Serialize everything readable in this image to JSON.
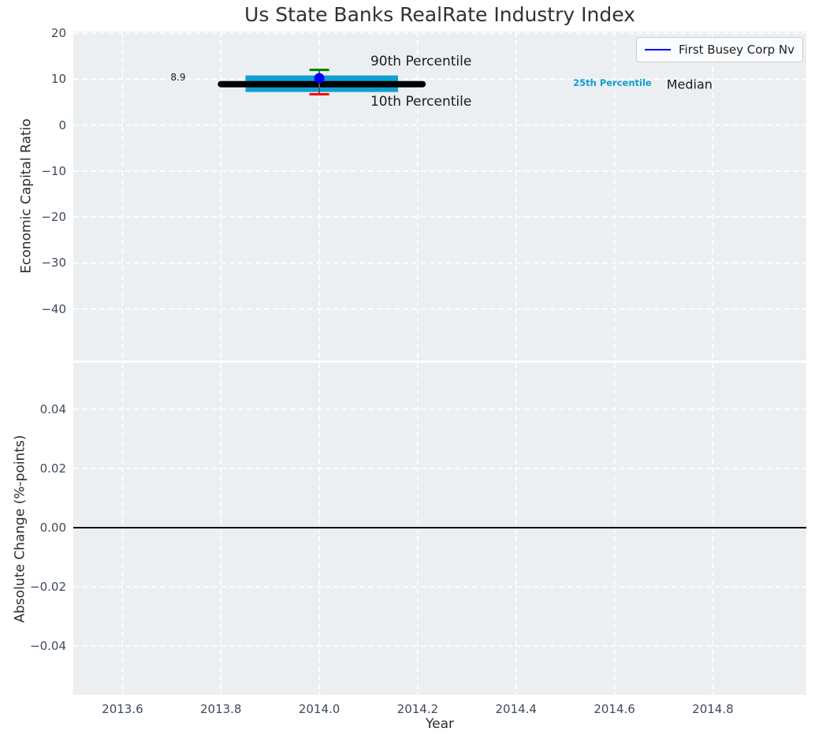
{
  "figure_title": "Us State Banks RealRate Industry Index",
  "chart_data": [
    {
      "type": "line",
      "title": "Us State Banks RealRate Industry Index",
      "ylabel": "Economic Capital Ratio",
      "xlabel": "",
      "xlim": [
        2013.5,
        2014.99
      ],
      "ylim": [
        -51.2,
        20.35
      ],
      "background": "#eceff1",
      "grid": {
        "on": true,
        "color": "#ffffff",
        "style": "dashed"
      },
      "xticks": [
        {
          "v": 2013.6,
          "t": "2013.6"
        },
        {
          "v": 2013.8,
          "t": "2013.8"
        },
        {
          "v": 2014.0,
          "t": "2014.0"
        },
        {
          "v": 2014.2,
          "t": "2014.2"
        },
        {
          "v": 2014.4,
          "t": "2014.4"
        },
        {
          "v": 2014.6,
          "t": "2014.6"
        },
        {
          "v": 2014.8,
          "t": "2014.8"
        }
      ],
      "yticks": [
        {
          "v": 20,
          "t": "20"
        },
        {
          "v": 10,
          "t": "10"
        },
        {
          "v": 0,
          "t": "0"
        },
        {
          "v": -10,
          "t": "−10"
        },
        {
          "v": -20,
          "t": "−20"
        },
        {
          "v": -30,
          "t": "−30"
        },
        {
          "v": -40,
          "t": "−40"
        }
      ],
      "legend": {
        "loc": "upper right",
        "entries": [
          {
            "label": "First Busey Corp Nv",
            "color": "#0000ff"
          }
        ]
      },
      "marks": [
        {
          "kind": "band",
          "name": "percentile-band",
          "series": "25th–75th Percentile band",
          "color": "#109fd4",
          "x": [
            2013.85,
            2014.16
          ],
          "y": [
            7.2,
            10.8
          ]
        },
        {
          "kind": "line",
          "name": "median-line",
          "series": "Median",
          "value": 8.9,
          "x": [
            2013.8,
            2014.21
          ],
          "color": "#000000",
          "width": 8,
          "cap": "round"
        },
        {
          "kind": "vline",
          "name": "percentile-whisker",
          "series": "10th–90th Percentile whisker",
          "x": 2014.0,
          "y": [
            6.7,
            12.0
          ],
          "color": "#555555",
          "width": 1.8
        },
        {
          "kind": "line",
          "name": "p90-cap",
          "series": "90th Percentile",
          "value": 12.0,
          "x": [
            2013.98,
            2014.02
          ],
          "color": "#008000",
          "width": 3,
          "cap": "butt"
        },
        {
          "kind": "line",
          "name": "p10-cap",
          "series": "10th Percentile",
          "value": 6.7,
          "x": [
            2013.98,
            2014.02
          ],
          "color": "#ff0000",
          "width": 3,
          "cap": "butt"
        },
        {
          "kind": "point",
          "name": "company-point",
          "series": "First Busey Corp Nv",
          "x": 2014.0,
          "value": 10.2,
          "color": "#0000ff",
          "radius": 6.5
        }
      ],
      "annotations": [
        {
          "name": "median-value",
          "text": "8.9",
          "x": 2013.713,
          "y": 10.44,
          "anchor": "middle",
          "size": 12,
          "color": "#1a1a1a"
        },
        {
          "name": "p90-label",
          "text": "90th Percentile",
          "x": 2014.104,
          "y": 13.86,
          "anchor": "start",
          "size": 17,
          "color": "#1a1a1a"
        },
        {
          "name": "p10-label",
          "text": "10th Percentile",
          "x": 2014.104,
          "y": 5.14,
          "anchor": "start",
          "size": 17,
          "color": "#1a1a1a"
        },
        {
          "name": "p25-label",
          "text": "25th Percentile",
          "x": 2014.516,
          "y": 8.97,
          "anchor": "start",
          "size": 11.5,
          "color": "#109fd4",
          "weight": "bold"
        },
        {
          "name": "median-label",
          "text": "Median",
          "x": 2014.706,
          "y": 8.9,
          "anchor": "start",
          "size": 16,
          "color": "#1a1a1a"
        }
      ]
    },
    {
      "type": "line",
      "title": "",
      "ylabel": "Absolute Change (%-points)",
      "xlabel": "Year",
      "xlim": [
        2013.5,
        2014.99
      ],
      "ylim": [
        -0.0565,
        0.0557
      ],
      "background": "#eceff1",
      "grid": {
        "on": true,
        "color": "#ffffff",
        "style": "dashed"
      },
      "xticks": [
        {
          "v": 2013.6,
          "t": "2013.6"
        },
        {
          "v": 2013.8,
          "t": "2013.8"
        },
        {
          "v": 2014.0,
          "t": "2014.0"
        },
        {
          "v": 2014.2,
          "t": "2014.2"
        },
        {
          "v": 2014.4,
          "t": "2014.4"
        },
        {
          "v": 2014.6,
          "t": "2014.6"
        },
        {
          "v": 2014.8,
          "t": "2014.8"
        }
      ],
      "yticks": [
        {
          "v": 0.04,
          "t": "0.04"
        },
        {
          "v": 0.02,
          "t": "0.02"
        },
        {
          "v": 0,
          "t": "0.00"
        },
        {
          "v": -0.02,
          "t": "−0.02"
        },
        {
          "v": -0.04,
          "t": "−0.04"
        }
      ],
      "marks": [
        {
          "kind": "line",
          "name": "zero-line",
          "series": "zero change reference",
          "value": 0.0,
          "x": [
            2013.5,
            2014.99
          ],
          "color": "#000000",
          "width": 2,
          "cap": "butt"
        }
      ],
      "annotations": []
    }
  ]
}
